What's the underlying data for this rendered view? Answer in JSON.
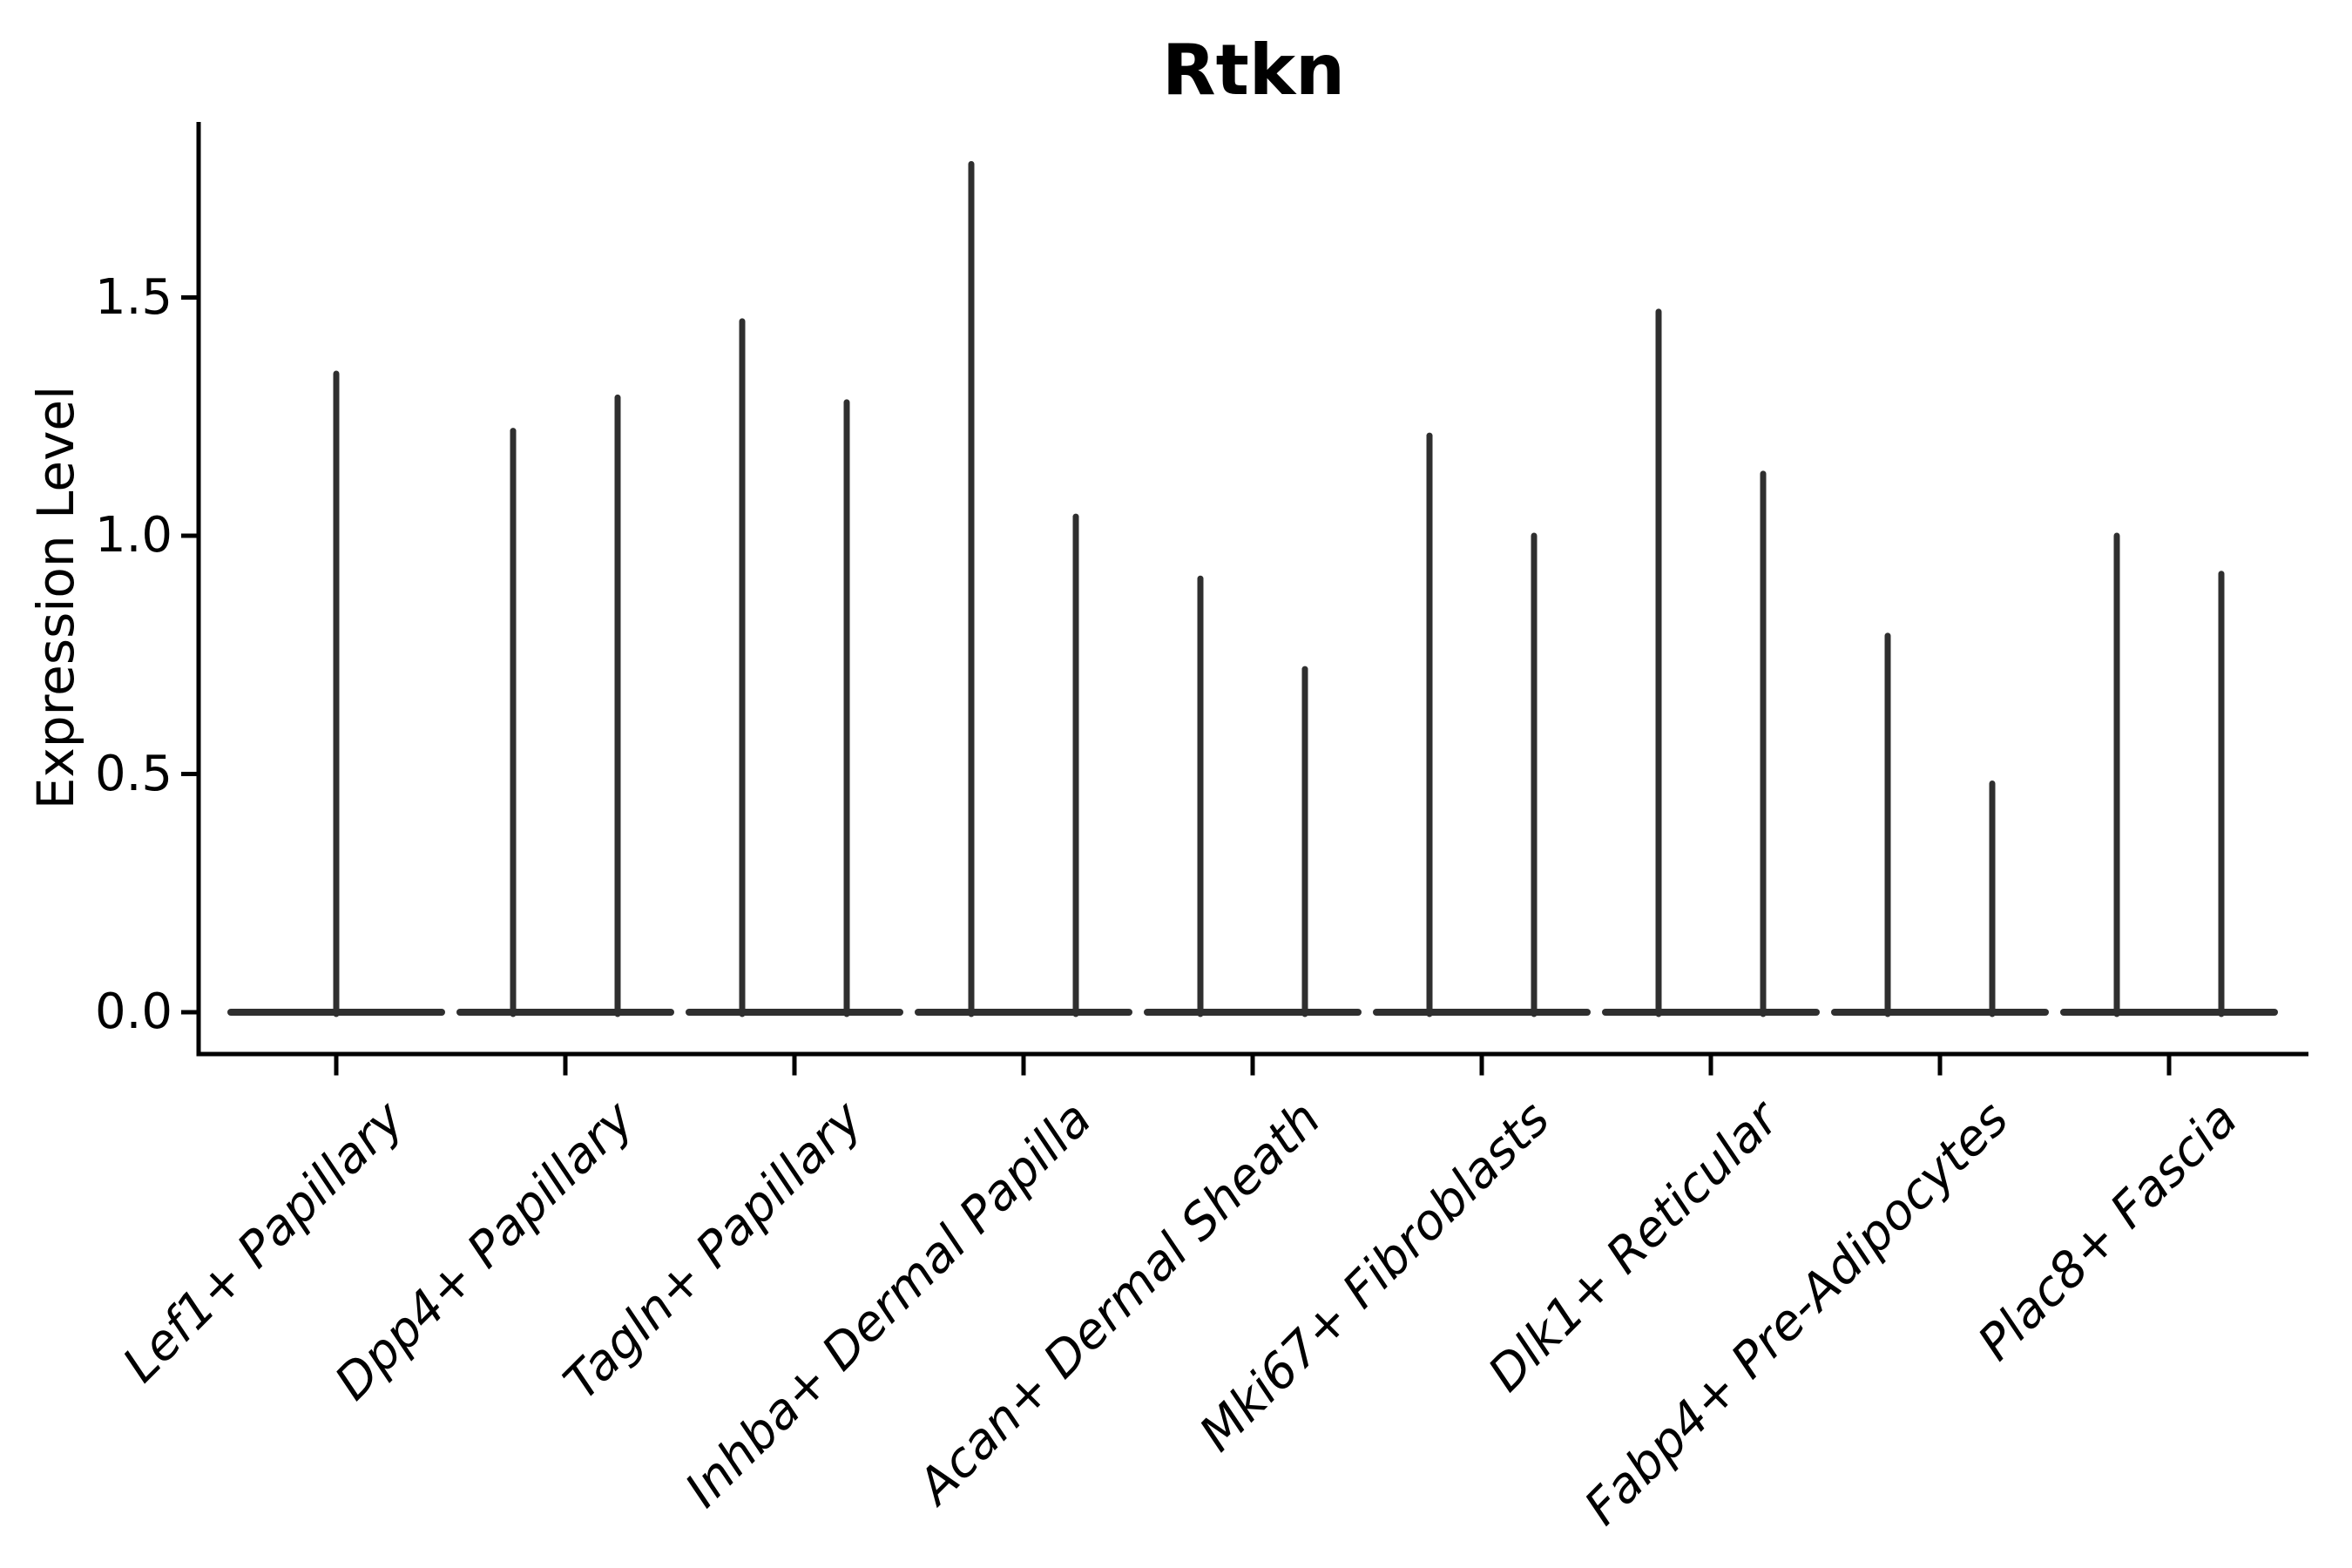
{
  "chart_data": {
    "type": "violin",
    "title": "Rtkn",
    "ylabel": "Expression Level",
    "xlabel": "",
    "ytick_labels": [
      "0.0",
      "0.5",
      "1.0",
      "1.5"
    ],
    "ytick_values": [
      0.0,
      0.5,
      1.0,
      1.5
    ],
    "ylim": [
      -0.09,
      1.87
    ],
    "grid": false,
    "legend_position": "none",
    "spines": [
      "left",
      "bottom"
    ],
    "violin_color": "#2f2f2f",
    "shape_note": "each violin is a flat horizontal base at expression 0 with a thin vertical spike rising to its maximum value",
    "categories": [
      "Lef1+ Papillary",
      "Dpp4+ Papillary",
      "Tagln+ Papillary",
      "Inhba+ Dermal Papilla",
      "Acan+ Dermal Sheath",
      "Mki67+ Fibroblasts",
      "Dlk1+ Reticular",
      "Fabp4+ Pre-Adipocytes",
      "Plac8+ Fascia"
    ],
    "violins": [
      {
        "category": "Lef1+ Papillary",
        "spike_maxima": [
          1.34
        ]
      },
      {
        "category": "Dpp4+ Papillary",
        "spike_maxima": [
          1.22,
          1.29
        ]
      },
      {
        "category": "Tagln+ Papillary",
        "spike_maxima": [
          1.45,
          1.28
        ]
      },
      {
        "category": "Inhba+ Dermal Papilla",
        "spike_maxima": [
          1.78,
          1.04
        ]
      },
      {
        "category": "Acan+ Dermal Sheath",
        "spike_maxima": [
          0.91,
          0.72
        ]
      },
      {
        "category": "Mki67+ Fibroblasts",
        "spike_maxima": [
          1.21,
          1.0
        ]
      },
      {
        "category": "Dlk1+ Reticular",
        "spike_maxima": [
          1.47,
          1.13
        ]
      },
      {
        "category": "Fabp4+ Pre-Adipocytes",
        "spike_maxima": [
          0.79,
          0.48
        ]
      },
      {
        "category": "Plac8+ Fascia",
        "spike_maxima": [
          1.0,
          0.92
        ]
      }
    ]
  }
}
